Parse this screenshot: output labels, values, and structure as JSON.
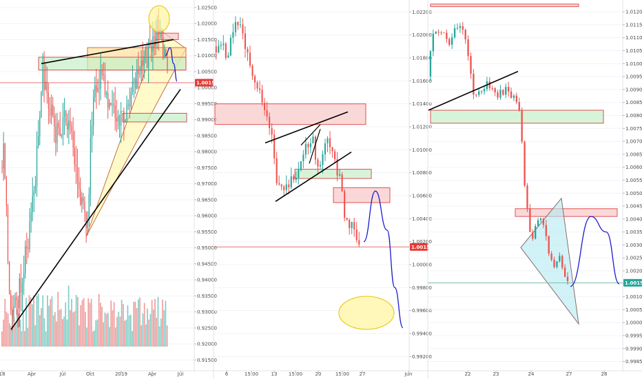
{
  "colors": {
    "bull": "#26a69a",
    "bear": "#ef5350",
    "vol_bull": "#80cbc4",
    "vol_bear": "#ef9a9a",
    "zone_red_fill": "#f8c8c8",
    "zone_red_stroke": "#e05050",
    "zone_green_fill": "#c8f0c8",
    "zone_green_stroke": "#d05050",
    "price_line": "#e57373",
    "grid": "#f0f3fa",
    "divider": "#e0e3eb",
    "badge_red": "#e53935",
    "badge_green": "#26a69a",
    "trendline": "#000000",
    "projection": "#1a1acc",
    "highlight_fill": "#fff59d",
    "highlight_stroke": "#e6c200",
    "wedge_fill": "#b2ebf2"
  },
  "chart_data": [
    {
      "type": "candlestick",
      "panel": "left",
      "x_tick_labels": [
        "18",
        "Apr",
        "Jul",
        "Oct",
        "2019",
        "Apr",
        "Jul"
      ],
      "y_tick_labels": [
        "1.02500",
        "1.02000",
        "1.01500",
        "1.01000",
        "1.00500",
        "1.00000",
        "0.99500",
        "0.99000",
        "0.98500",
        "0.98000",
        "0.97500",
        "0.97000",
        "0.96500",
        "0.96000",
        "0.95500",
        "0.95000",
        "0.94500",
        "0.94000",
        "0.93500",
        "0.93000",
        "0.92500",
        "0.92000",
        "0.91500"
      ],
      "ylim": [
        0.9125,
        1.0265
      ],
      "last_price_label": "1.00154",
      "last_price": 1.00154,
      "volume": true,
      "annotations": [
        "green zone",
        "green zone",
        "orange zone",
        "red zone",
        "rising triangle",
        "trendlines",
        "highlight ellipse",
        "projection curve"
      ]
    },
    {
      "type": "candlestick",
      "panel": "middle",
      "x_tick_labels": [
        "6",
        "15:00",
        "13",
        "15:00",
        "20",
        "15:00",
        "27",
        "Jun"
      ],
      "y_tick_labels": [
        "1.02200",
        "1.02000",
        "1.01800",
        "1.01600",
        "1.01400",
        "1.01200",
        "1.01000",
        "1.00800",
        "1.00600",
        "1.00400",
        "1.00200",
        "1.00000",
        "0.99800",
        "0.99600",
        "0.99400",
        "0.99200"
      ],
      "ylim": [
        0.991,
        1.0228
      ],
      "last_price_label": "1.00154",
      "last_price": 1.00154,
      "annotations": [
        "red zone",
        "red zone",
        "green zone",
        "rising wedge",
        "projection curve",
        "target ellipse"
      ]
    },
    {
      "type": "candlestick",
      "panel": "right",
      "x_tick_labels": [
        "22",
        "23",
        "24",
        "27",
        "28"
      ],
      "y_tick_labels": [
        "1.01200",
        "1.01150",
        "1.01100",
        "1.01050",
        "1.01000",
        "1.00950",
        "1.00900",
        "1.00850",
        "1.00800",
        "1.00750",
        "1.00700",
        "1.00650",
        "1.00600",
        "1.00550",
        "1.00500",
        "1.00450",
        "1.00400",
        "1.00350",
        "1.00300",
        "1.00250",
        "1.00200",
        "1.00150",
        "1.00100",
        "1.00050",
        "1.00000",
        "0.99950",
        "0.99900",
        "0.99850"
      ],
      "ylim": [
        0.99825,
        1.01235
      ],
      "last_price_label": "1.00154",
      "last_price": 1.00154,
      "annotations": [
        "red zone",
        "green zone",
        "red zone",
        "trendline",
        "falling wedge",
        "projection curve"
      ]
    }
  ]
}
